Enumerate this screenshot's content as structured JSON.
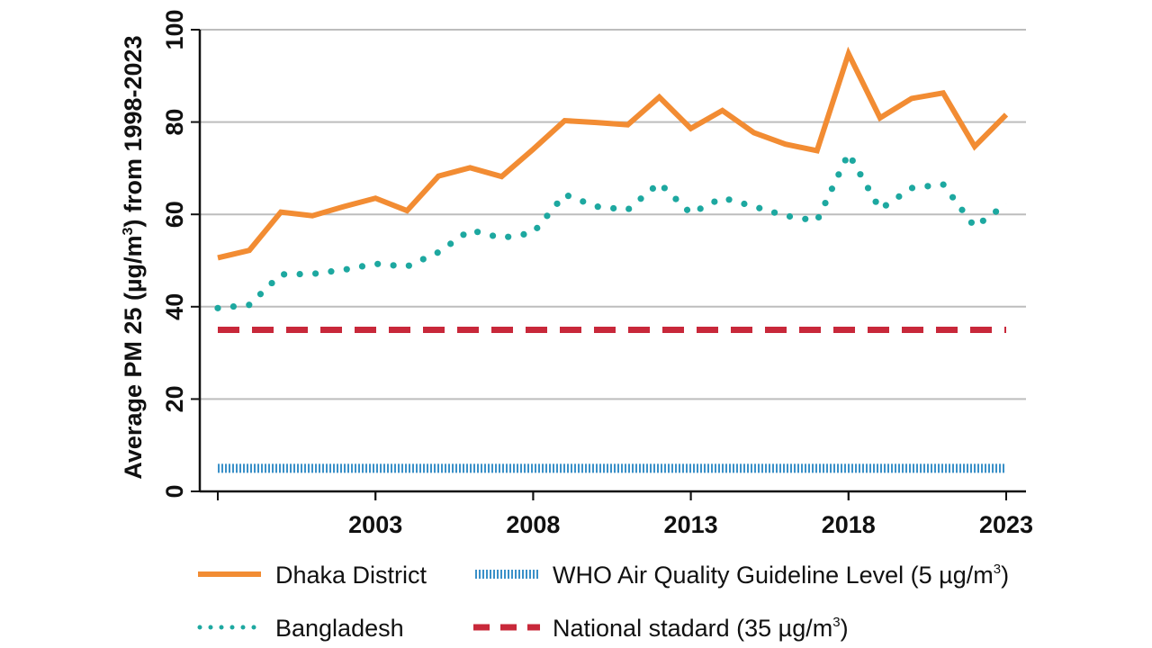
{
  "chart_data": {
    "type": "line",
    "title": "",
    "xlabel": "",
    "ylabel": "Average PM 25 (µg/m3) from 1998-2023",
    "ylabel_parts": [
      "Average PM 25 (µg/m",
      "3",
      ") from 1998-2023"
    ],
    "xlim": [
      1998,
      2023
    ],
    "ylim": [
      0,
      100
    ],
    "yticks": [
      0,
      20,
      40,
      60,
      80,
      100
    ],
    "xticks": [
      2003,
      2008,
      2013,
      2018,
      2023
    ],
    "grid": true,
    "x": [
      1998,
      1999,
      2000,
      2001,
      2002,
      2003,
      2004,
      2005,
      2006,
      2007,
      2008,
      2009,
      2010,
      2011,
      2012,
      2013,
      2014,
      2015,
      2016,
      2017,
      2018,
      2019,
      2020,
      2021,
      2022,
      2023
    ],
    "series": [
      {
        "name": "Dhaka District",
        "style": "solid",
        "color": "#F28C33",
        "values": [
          50.6,
          52.2,
          60.5,
          59.7,
          61.7,
          63.5,
          60.8,
          68.3,
          70.1,
          68.2,
          74.1,
          80.3,
          79.9,
          79.4,
          85.4,
          78.6,
          82.5,
          77.7,
          75.2,
          73.8,
          94.8,
          80.9,
          85.1,
          86.3,
          74.7,
          81.6
        ]
      },
      {
        "name": "Bangladesh",
        "style": "dotted",
        "color": "#1DA8A0",
        "values": [
          39.7,
          40.4,
          47.0,
          47.1,
          48.0,
          49.3,
          48.7,
          51.8,
          56.6,
          54.9,
          56.0,
          64.3,
          61.7,
          61.0,
          66.8,
          60.2,
          63.6,
          61.7,
          59.7,
          58.6,
          73.2,
          61.1,
          65.7,
          66.5,
          57.3,
          62.2
        ]
      },
      {
        "name": "WHO Air Quality Guideline Level (5 µg/m3)",
        "style": "hatched",
        "color": "#3A90C8",
        "constant": 5
      },
      {
        "name": "National stadard (35 µg/m3)",
        "style": "dashed",
        "color": "#C8283A",
        "constant": 35
      }
    ],
    "legend": [
      {
        "label": "Dhaka District",
        "suffix": "",
        "after": ""
      },
      {
        "label": "WHO Air Quality Guideline Level (5 µg/m",
        "suffix": "3",
        "after": ")"
      },
      {
        "label": "Bangladesh",
        "suffix": "",
        "after": ""
      },
      {
        "label": "National stadard (35 µg/m",
        "suffix": "3",
        "after": ")"
      }
    ],
    "legend_position": "bottom"
  }
}
